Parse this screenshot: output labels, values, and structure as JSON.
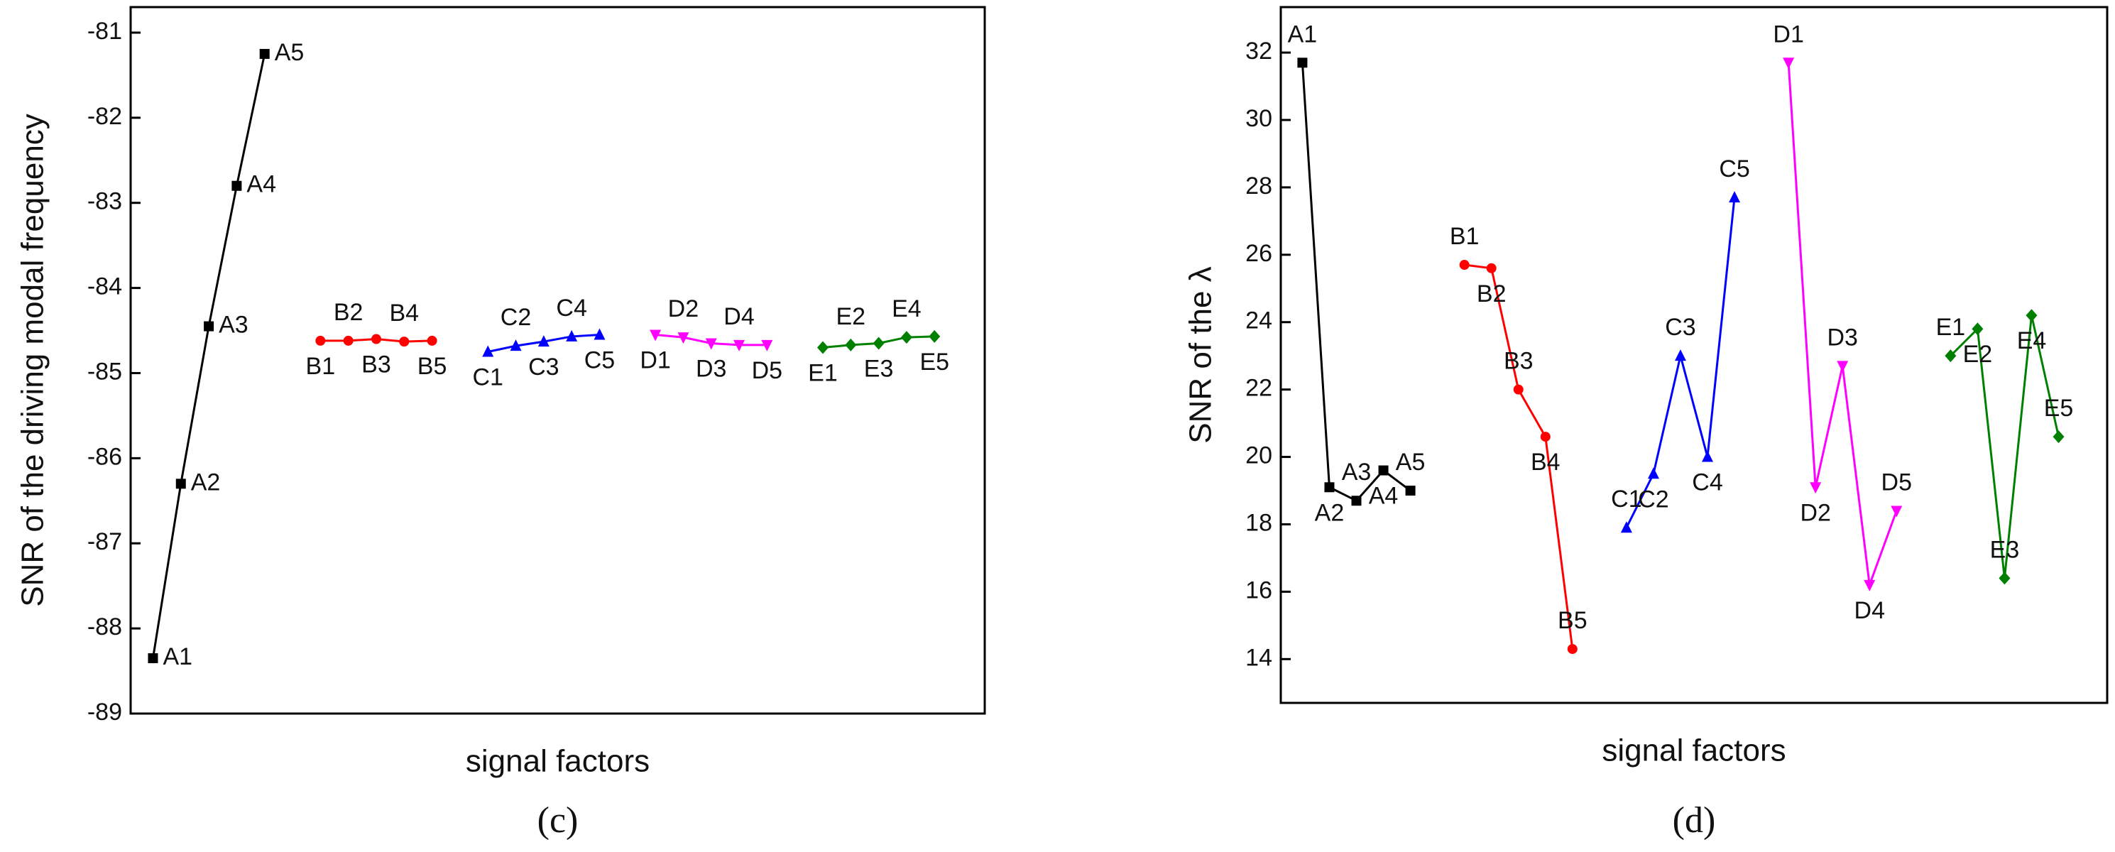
{
  "chart_data": [
    {
      "type": "line",
      "caption": "(c)",
      "y_label": "SNR of the driving modal frequency",
      "x_label": "signal factors",
      "ylim": [
        -89,
        -80.7
      ],
      "yticks": [
        -89,
        -88,
        -87,
        -86,
        -85,
        -84,
        -83,
        -82,
        -81
      ],
      "categories": [
        "A1",
        "A2",
        "A3",
        "A4",
        "A5",
        "B1",
        "B2",
        "B3",
        "B4",
        "B5",
        "C1",
        "C2",
        "C3",
        "C4",
        "C5",
        "D1",
        "D2",
        "D3",
        "D4",
        "D5",
        "E1",
        "E2",
        "E3",
        "E4",
        "E5"
      ],
      "series": [
        {
          "color": "#000000",
          "marker": "square",
          "values": [
            -88.35,
            -86.3,
            -84.45,
            -82.8,
            -81.25,
            null,
            null,
            null,
            null,
            null,
            null,
            null,
            null,
            null,
            null,
            null,
            null,
            null,
            null,
            null,
            null,
            null,
            null,
            null,
            null
          ]
        },
        {
          "color": "#ff0000",
          "marker": "circle",
          "values": [
            null,
            null,
            null,
            null,
            null,
            -84.62,
            -84.62,
            -84.6,
            -84.63,
            -84.62,
            null,
            null,
            null,
            null,
            null,
            null,
            null,
            null,
            null,
            null,
            null,
            null,
            null,
            null,
            null
          ]
        },
        {
          "color": "#0000ff",
          "marker": "triangle",
          "values": [
            null,
            null,
            null,
            null,
            null,
            null,
            null,
            null,
            null,
            null,
            -84.75,
            -84.68,
            -84.63,
            -84.57,
            -84.55,
            null,
            null,
            null,
            null,
            null,
            null,
            null,
            null,
            null,
            null
          ]
        },
        {
          "color": "#ff00ff",
          "marker": "down-triangle",
          "values": [
            null,
            null,
            null,
            null,
            null,
            null,
            null,
            null,
            null,
            null,
            null,
            null,
            null,
            null,
            null,
            -84.55,
            -84.58,
            -84.65,
            -84.67,
            -84.67,
            null,
            null,
            null,
            null,
            null
          ]
        },
        {
          "color": "#008000",
          "marker": "diamond",
          "values": [
            null,
            null,
            null,
            null,
            null,
            null,
            null,
            null,
            null,
            null,
            null,
            null,
            null,
            null,
            null,
            null,
            null,
            null,
            null,
            null,
            -84.7,
            -84.67,
            -84.65,
            -84.58,
            -84.57
          ]
        }
      ]
    },
    {
      "type": "line",
      "caption": "(d)",
      "y_label": "SNR of the λ",
      "x_label": "signal factors",
      "ylim": [
        12.7,
        33.35
      ],
      "yticks": [
        14,
        16,
        18,
        20,
        22,
        24,
        26,
        28,
        30,
        32
      ],
      "categories": [
        "A1",
        "A2",
        "A3",
        "A4",
        "A5",
        "B1",
        "B2",
        "B3",
        "B4",
        "B5",
        "C1",
        "C2",
        "C3",
        "C4",
        "C5",
        "D1",
        "D2",
        "D3",
        "D4",
        "D5",
        "E1",
        "E2",
        "E3",
        "E4",
        "E5"
      ],
      "series": [
        {
          "color": "#000000",
          "marker": "square",
          "values": [
            31.7,
            19.1,
            18.7,
            19.6,
            19.0,
            null,
            null,
            null,
            null,
            null,
            null,
            null,
            null,
            null,
            null,
            null,
            null,
            null,
            null,
            null,
            null,
            null,
            null,
            null,
            null
          ]
        },
        {
          "color": "#ff0000",
          "marker": "circle",
          "values": [
            null,
            null,
            null,
            null,
            null,
            25.7,
            25.6,
            22.0,
            20.6,
            14.3,
            null,
            null,
            null,
            null,
            null,
            null,
            null,
            null,
            null,
            null,
            null,
            null,
            null,
            null,
            null
          ]
        },
        {
          "color": "#0000ff",
          "marker": "triangle",
          "values": [
            null,
            null,
            null,
            null,
            null,
            null,
            null,
            null,
            null,
            null,
            17.9,
            19.5,
            23.0,
            20.0,
            27.7,
            null,
            null,
            null,
            null,
            null,
            null,
            null,
            null,
            null,
            null
          ]
        },
        {
          "color": "#ff00ff",
          "marker": "down-triangle",
          "values": [
            null,
            null,
            null,
            null,
            null,
            null,
            null,
            null,
            null,
            null,
            null,
            null,
            null,
            null,
            null,
            31.7,
            19.1,
            22.7,
            16.2,
            18.4,
            null,
            null,
            null,
            null,
            null
          ]
        },
        {
          "color": "#008000",
          "marker": "diamond",
          "values": [
            null,
            null,
            null,
            null,
            null,
            null,
            null,
            null,
            null,
            null,
            null,
            null,
            null,
            null,
            null,
            null,
            null,
            null,
            null,
            null,
            23.0,
            23.8,
            16.4,
            24.2,
            20.6
          ]
        }
      ]
    }
  ]
}
